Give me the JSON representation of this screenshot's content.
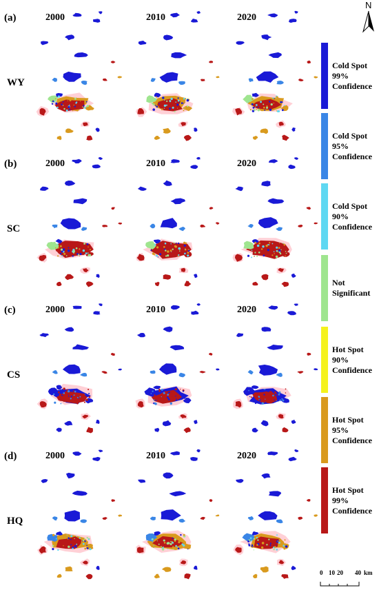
{
  "panels": [
    {
      "letter": "(a)",
      "label": "WY",
      "years": [
        "2000",
        "2010",
        "2020"
      ]
    },
    {
      "letter": "(b)",
      "label": "SC",
      "years": [
        "2000",
        "2010",
        "2020"
      ]
    },
    {
      "letter": "(c)",
      "label": "CS",
      "years": [
        "2000",
        "2010",
        "2020"
      ]
    },
    {
      "letter": "(d)",
      "label": "HQ",
      "years": [
        "2000",
        "2010",
        "2020"
      ]
    }
  ],
  "legend": [
    {
      "lines": [
        "Cold Spot",
        "99%",
        "Confidence"
      ],
      "color": "#1a1ad6"
    },
    {
      "lines": [
        "Cold Spot",
        "95%",
        "Confidence"
      ],
      "color": "#3a86e6"
    },
    {
      "lines": [
        "Cold Spot",
        "90%",
        "Confidence"
      ],
      "color": "#5fd8f2"
    },
    {
      "lines": [
        "Not",
        "Significant"
      ],
      "color": "#9fe58f"
    },
    {
      "lines": [
        "Hot Spot",
        "90%",
        "Confidence"
      ],
      "color": "#f5f21c"
    },
    {
      "lines": [
        "Hot Spot",
        "95%",
        "Confidence"
      ],
      "color": "#d99a1e"
    },
    {
      "lines": [
        "Hot Spot",
        "99%",
        "Confidence"
      ],
      "color": "#b81818"
    }
  ],
  "north_arrow": {
    "label": "N"
  },
  "scale_bar": {
    "ticks": [
      "0",
      "10",
      "20",
      "40"
    ],
    "unit": "km"
  },
  "colors": {
    "cold99": "#1a1ad6",
    "cold95": "#3a86e6",
    "cold90": "#5fd8f2",
    "ns": "#9fe58f",
    "hot90": "#f5f21c",
    "hot95": "#d99a1e",
    "hot99": "#b81818",
    "halo": "#ffd0d6"
  }
}
